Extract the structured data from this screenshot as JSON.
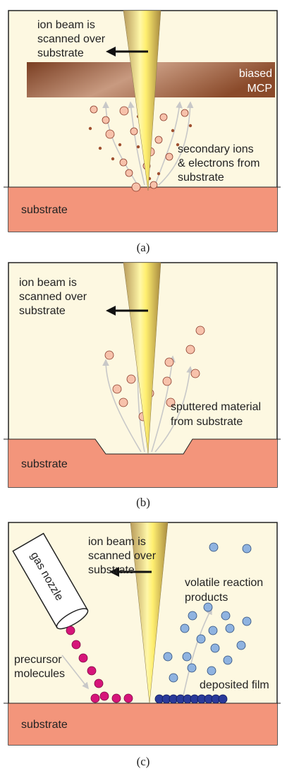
{
  "panels": [
    {
      "beam_label": [
        "ion beam is",
        "scanned over",
        "substrate"
      ],
      "mcp_label": [
        "biased",
        "MCP"
      ],
      "emission_label": [
        "secondary ions",
        "& electrons from",
        "substrate"
      ],
      "substrate": "substrate",
      "caption": "(a)"
    },
    {
      "beam_label": [
        "ion beam is",
        "scanned over",
        "substrate"
      ],
      "emission_label": [
        "sputtered material",
        "from substrate"
      ],
      "substrate": "substrate",
      "caption": "(b)"
    },
    {
      "beam_label": [
        "ion beam is",
        "scanned over",
        "substrate"
      ],
      "nozzle_label": "gas nozzle",
      "products_label": [
        "volatile reaction",
        "products"
      ],
      "precursor_label": [
        "precursor",
        "molecules"
      ],
      "film_label": "deposited film",
      "substrate": "substrate",
      "caption": "(c)"
    }
  ]
}
